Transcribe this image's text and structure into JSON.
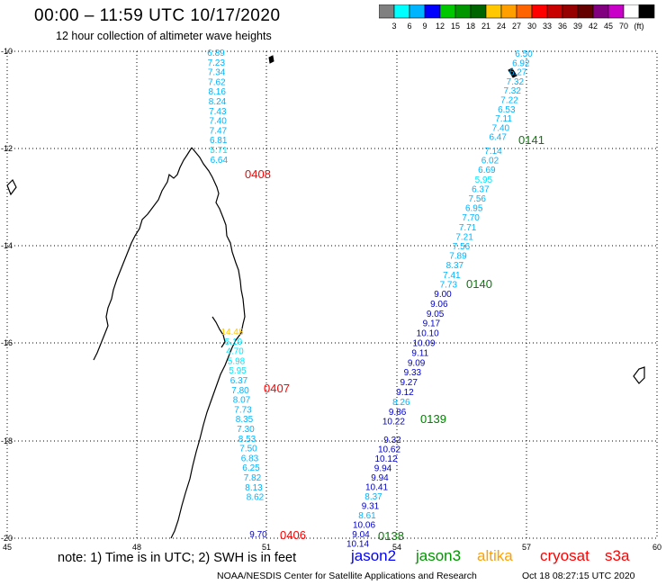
{
  "header": {
    "title": "00:00 – 11:59 UTC 10/17/2020",
    "subtitle": "12 hour collection of altimeter wave heights"
  },
  "legend": {
    "colors": [
      "#808080",
      "#00ffff",
      "#00b4ff",
      "#0000ff",
      "#00c800",
      "#009600",
      "#006400",
      "#ffc800",
      "#ffa000",
      "#ff6400",
      "#ff0000",
      "#c80000",
      "#960000",
      "#640000",
      "#800080",
      "#c800c8",
      "#ffffff",
      "#000000"
    ],
    "labels": [
      "3",
      "6",
      "9",
      "12",
      "15",
      "18",
      "21",
      "24",
      "27",
      "30",
      "33",
      "36",
      "39",
      "42",
      "45",
      "70",
      "(ft)"
    ]
  },
  "axes": {
    "y_ticks": [
      "-10",
      "-12",
      "-14",
      "-16",
      "-18",
      "-20"
    ],
    "x_ticks": [
      "45",
      "48",
      "51",
      "54",
      "57",
      "60"
    ]
  },
  "tracks": [
    {
      "pass": "0408",
      "satellite": "cryosat",
      "label_color": "#ff0000",
      "values": [
        "6.89",
        "7.23",
        "7.34",
        "7.62",
        "8.16",
        "8.24",
        "7.43",
        "7.40",
        "7.47",
        "6.81",
        "5.71",
        "6.64"
      ]
    },
    {
      "pass": "0407",
      "satellite": "cryosat",
      "label_color": "#ff0000",
      "values": [
        "14.48",
        "5.19",
        "4.70",
        "5.98",
        "5.95",
        "6.37",
        "7.80",
        "8.07",
        "7.73",
        "8.35",
        "7.30",
        "8.53",
        "7.50",
        "6.83",
        "6.25",
        "7.82",
        "8.13",
        "8.62"
      ]
    },
    {
      "pass": "0406",
      "satellite": "cryosat",
      "label_color": "#ff0000",
      "values": [
        "9.70"
      ]
    },
    {
      "pass": "0141",
      "satellite": "jason3",
      "label_color": "#008000",
      "values": [
        "6.50",
        "6.92",
        "6.27",
        "7.32",
        "7.32",
        "7.22",
        "6.53",
        "7.11",
        "7.40",
        "6.47"
      ]
    },
    {
      "pass": "0140",
      "satellite": "jason3",
      "label_color": "#008000",
      "values": [
        "7.14",
        "6.02",
        "6.69",
        "5.95",
        "6.37",
        "7.56",
        "6.95",
        "7.70",
        "7.71",
        "7.21",
        "7.56",
        "7.89",
        "8.37",
        "7.41",
        "7.73"
      ]
    },
    {
      "pass": "0139",
      "satellite": "jason3",
      "label_color": "#008000",
      "values": [
        "9.00",
        "9.06",
        "9.05",
        "9.17",
        "10.10",
        "10.09",
        "9.11",
        "9.09",
        "9.33",
        "9.27",
        "9.12",
        "8.26",
        "9.86",
        "10.22"
      ]
    },
    {
      "pass": "0138",
      "satellite": "jason3",
      "label_color": "#008000",
      "values": [
        "9.32",
        "10.62",
        "10.12",
        "9.94",
        "9.94",
        "10.41",
        "8.37",
        "9.31",
        "8.61",
        "10.06",
        "9.04",
        "10.14"
      ]
    }
  ],
  "footer": {
    "note": "note: 1) Time is in UTC; 2) SWH is in feet",
    "satellites": [
      {
        "name": "jason2",
        "color": "#0000ff"
      },
      {
        "name": "jason3",
        "color": "#009600"
      },
      {
        "name": "altika",
        "color": "#ffa000"
      },
      {
        "name": "cryosat",
        "color": "#ff0000"
      },
      {
        "name": "s3a",
        "color": "#ff0000"
      }
    ],
    "credit": "NOAA/NESDIS Center for Satellite Applications and Research",
    "timestamp": "Oct 18 08:27:15 UTC 2020"
  }
}
